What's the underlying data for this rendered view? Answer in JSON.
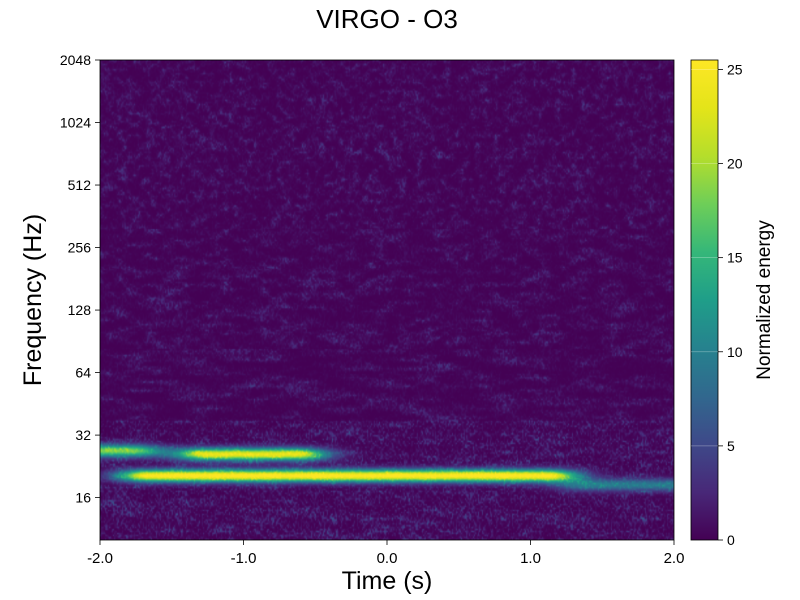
{
  "chart_data": {
    "type": "heatmap",
    "title": "VIRGO - O3",
    "xlabel": "Time (s)",
    "ylabel": "Frequency (Hz)",
    "xlim": [
      -2.0,
      2.0
    ],
    "ylim": [
      10,
      2048
    ],
    "yscale": "log2",
    "xticks": [
      {
        "value": -2.0,
        "label": "-2.0"
      },
      {
        "value": -1.0,
        "label": "-1.0"
      },
      {
        "value": 0.0,
        "label": "0.0"
      },
      {
        "value": 1.0,
        "label": "1.0"
      },
      {
        "value": 2.0,
        "label": "2.0"
      }
    ],
    "yticks": [
      {
        "value": 16,
        "label": "16"
      },
      {
        "value": 32,
        "label": "32"
      },
      {
        "value": 64,
        "label": "64"
      },
      {
        "value": 128,
        "label": "128"
      },
      {
        "value": 256,
        "label": "256"
      },
      {
        "value": 512,
        "label": "512"
      },
      {
        "value": 1024,
        "label": "1024"
      },
      {
        "value": 2048,
        "label": "2048"
      }
    ],
    "colorbar": {
      "label": "Normalized energy",
      "range": [
        0,
        25.5
      ],
      "colormap": "viridis",
      "ticks": [
        {
          "value": 0,
          "label": "0"
        },
        {
          "value": 5,
          "label": "5"
        },
        {
          "value": 10,
          "label": "10"
        },
        {
          "value": 15,
          "label": "15"
        },
        {
          "value": 20,
          "label": "20"
        },
        {
          "value": 25,
          "label": "25"
        }
      ]
    },
    "features": [
      {
        "name": "main-track",
        "t_start": -1.65,
        "t_end": 1.1,
        "freq": 20.5,
        "energy": 25
      },
      {
        "name": "chirp-blob",
        "t_start": -1.25,
        "t_end": -0.65,
        "freq": 26,
        "energy": 23
      },
      {
        "name": "edge-blob",
        "t_start": -2.0,
        "t_end": -1.8,
        "freq": 27,
        "energy": 18
      },
      {
        "name": "late-track",
        "t_start": 1.4,
        "t_end": 1.95,
        "freq": 18.5,
        "energy": 9
      }
    ]
  }
}
